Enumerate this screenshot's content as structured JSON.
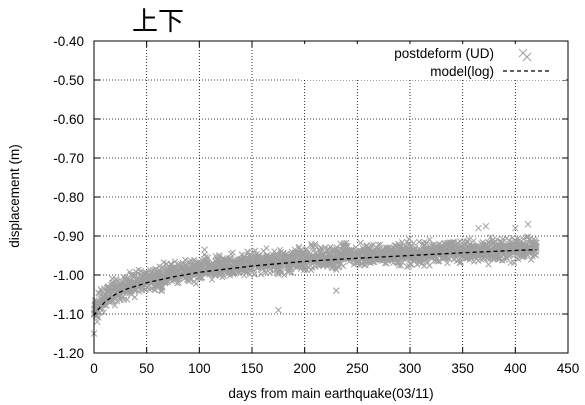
{
  "chart_data": {
    "type": "scatter",
    "title": "上下",
    "xlabel": "days from main earthquake(03/11)",
    "ylabel": "displacement (m)",
    "xlim": [
      0,
      450
    ],
    "ylim": [
      -1.2,
      -0.4
    ],
    "x_ticks": [
      "0",
      "50",
      "100",
      "150",
      "200",
      "250",
      "300",
      "350",
      "400",
      "450"
    ],
    "y_ticks": [
      "-0.40",
      "-0.50",
      "-0.60",
      "-0.70",
      "-0.80",
      "-0.90",
      "-1.00",
      "-1.10",
      "-1.20"
    ],
    "grid": true,
    "legend_position": "top-right",
    "series": [
      {
        "name": "postdeform (UD)",
        "kind": "scatter",
        "marker": "x",
        "color": "#a0a0a0",
        "x": [
          0,
          1,
          2,
          5,
          10,
          15,
          20,
          30,
          40,
          50,
          60,
          70,
          80,
          90,
          100,
          110,
          120,
          130,
          140,
          150,
          160,
          170,
          180,
          190,
          200,
          210,
          220,
          230,
          240,
          250,
          260,
          270,
          280,
          290,
          300,
          310,
          320,
          330,
          340,
          350,
          360,
          370,
          380,
          390,
          400,
          410,
          420
        ],
        "y": [
          -1.1,
          -1.09,
          -1.085,
          -1.075,
          -1.06,
          -1.05,
          -1.04,
          -1.03,
          -1.02,
          -1.015,
          -1.01,
          -1.0,
          -0.995,
          -0.99,
          -0.985,
          -0.98,
          -0.98,
          -0.975,
          -0.97,
          -0.97,
          -0.97,
          -0.965,
          -0.965,
          -0.96,
          -0.96,
          -0.955,
          -0.955,
          -0.955,
          -0.95,
          -0.95,
          -0.95,
          -0.948,
          -0.947,
          -0.945,
          -0.945,
          -0.945,
          -0.942,
          -0.94,
          -0.94,
          -0.94,
          -0.938,
          -0.937,
          -0.935,
          -0.935,
          -0.935,
          -0.933,
          -0.93
        ],
        "outliers": [
          {
            "x": 0,
            "y": -1.15
          },
          {
            "x": 3,
            "y": -1.12
          },
          {
            "x": 105,
            "y": -0.935
          },
          {
            "x": 175,
            "y": -1.09
          },
          {
            "x": 230,
            "y": -1.04
          },
          {
            "x": 365,
            "y": -0.88
          },
          {
            "x": 372,
            "y": -0.875
          },
          {
            "x": 400,
            "y": -0.88
          },
          {
            "x": 412,
            "y": -0.87
          }
        ]
      },
      {
        "name": "model(log)",
        "kind": "line",
        "style": "dashed",
        "color": "#000000",
        "x": [
          0,
          1,
          2,
          5,
          10,
          20,
          30,
          50,
          75,
          100,
          150,
          200,
          250,
          300,
          350,
          400,
          420
        ],
        "y": [
          -1.105,
          -1.1,
          -1.095,
          -1.085,
          -1.07,
          -1.05,
          -1.037,
          -1.02,
          -1.005,
          -0.993,
          -0.977,
          -0.965,
          -0.957,
          -0.95,
          -0.943,
          -0.937,
          -0.935
        ]
      }
    ]
  }
}
